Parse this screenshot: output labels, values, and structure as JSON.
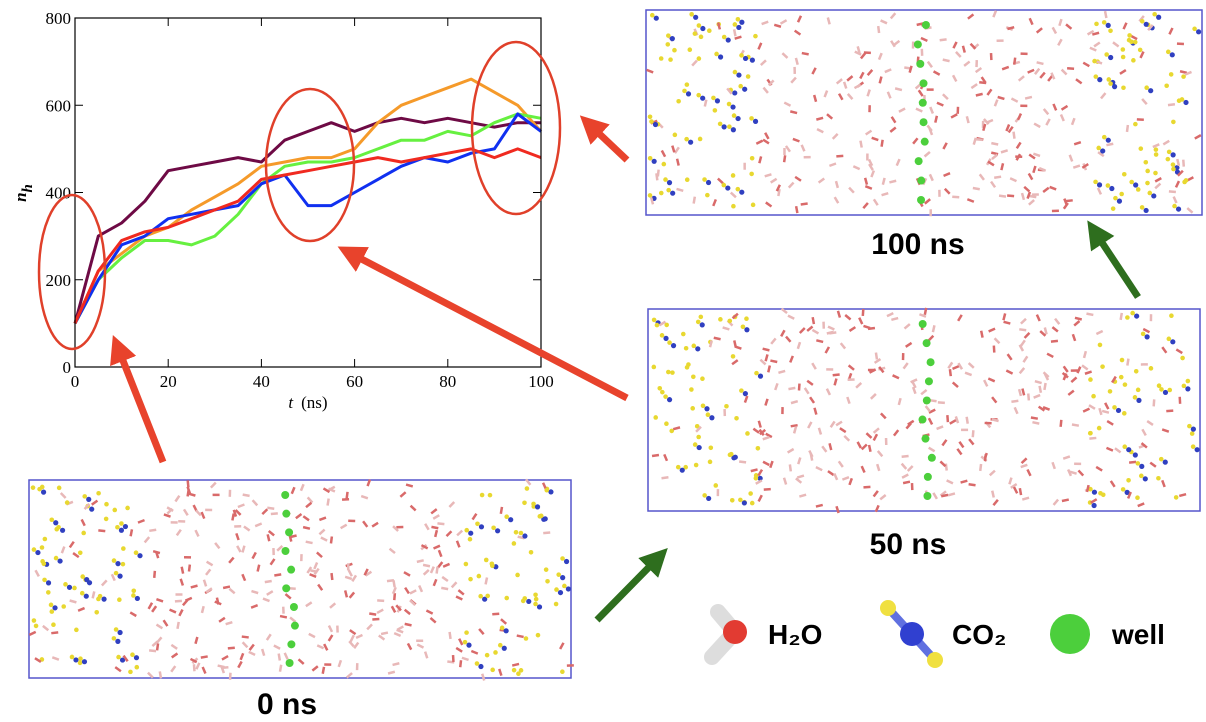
{
  "chart_data": {
    "type": "line",
    "xlabel_var": "t",
    "xlabel_unit": "(ns)",
    "ylabel": "n",
    "ylabel_sub": "h",
    "x": [
      0,
      5,
      10,
      15,
      20,
      25,
      30,
      35,
      40,
      45,
      50,
      55,
      60,
      65,
      70,
      75,
      80,
      85,
      90,
      95,
      100
    ],
    "series": [
      {
        "color": "#6e0a45",
        "values": [
          100,
          300,
          330,
          380,
          450,
          460,
          470,
          480,
          470,
          520,
          540,
          560,
          540,
          560,
          570,
          560,
          570,
          560,
          550,
          560,
          560
        ]
      },
      {
        "color": "#f59a2a",
        "values": [
          100,
          220,
          260,
          300,
          320,
          360,
          390,
          420,
          460,
          470,
          480,
          480,
          500,
          560,
          600,
          620,
          640,
          660,
          630,
          600,
          540
        ]
      },
      {
        "color": "#66f040",
        "values": [
          100,
          200,
          250,
          290,
          290,
          280,
          300,
          350,
          420,
          460,
          470,
          470,
          480,
          500,
          520,
          520,
          540,
          530,
          560,
          580,
          570
        ]
      },
      {
        "color": "#1030f0",
        "values": [
          100,
          200,
          280,
          300,
          340,
          350,
          360,
          370,
          420,
          440,
          370,
          370,
          400,
          430,
          460,
          480,
          470,
          490,
          500,
          580,
          540
        ]
      },
      {
        "color": "#f02a20",
        "values": [
          100,
          220,
          290,
          310,
          320,
          340,
          360,
          380,
          430,
          440,
          450,
          460,
          470,
          480,
          470,
          480,
          490,
          500,
          480,
          500,
          480
        ]
      }
    ],
    "xlim": [
      0,
      100
    ],
    "xticks": [
      0,
      20,
      40,
      60,
      80,
      100
    ],
    "ylim": [
      0,
      800
    ],
    "yticks": [
      0,
      200,
      400,
      600,
      800
    ]
  },
  "snapshots": [
    "100 ns",
    "50 ns",
    "0 ns"
  ],
  "legend": [
    "H₂O",
    "CO₂",
    "well"
  ]
}
